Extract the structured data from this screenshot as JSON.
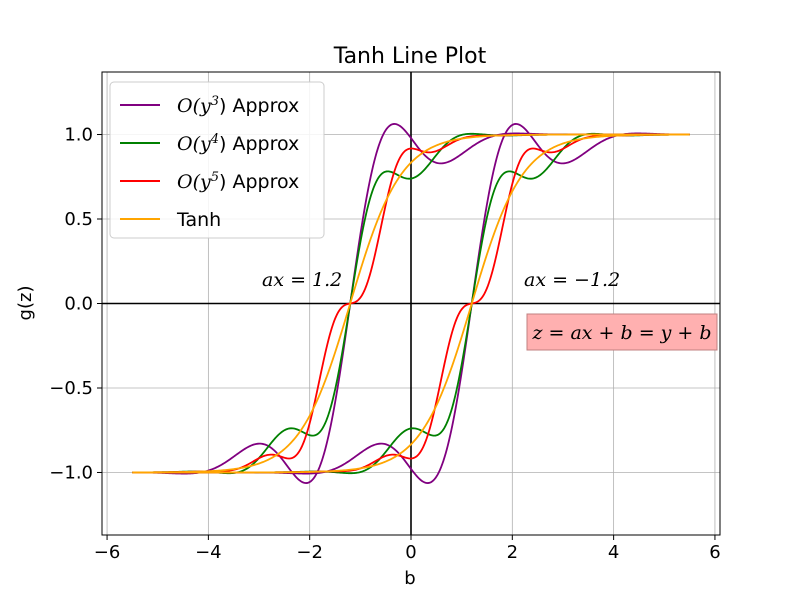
{
  "chart_data": {
    "type": "line",
    "title": "Tanh Line Plot",
    "xlabel": "b",
    "ylabel": "g(z)",
    "xlim": [
      -6.1,
      6.1
    ],
    "ylim": [
      -1.37,
      1.37
    ],
    "xticks": [
      -6,
      -4,
      -2,
      0,
      2,
      4,
      6
    ],
    "xtick_labels": [
      "−6",
      "−4",
      "−2",
      "0",
      "2",
      "4",
      "6"
    ],
    "yticks": [
      -1.0,
      -0.5,
      0.0,
      0.5,
      1.0
    ],
    "ytick_labels": [
      "−1.0",
      "−0.5",
      "0.0",
      "0.5",
      "1.0"
    ],
    "grid": true,
    "legend_position": "upper-left",
    "b_range": [
      -5.5,
      5.5
    ],
    "a_values": [
      1.2,
      -1.2
    ],
    "series": [
      {
        "key": "o3",
        "name_prefix": "O(y",
        "name_exp": "3",
        "name_suffix": ") Approx",
        "color": "#800080"
      },
      {
        "key": "o4",
        "name_prefix": "O(y",
        "name_exp": "4",
        "name_suffix": ") Approx",
        "color": "#008000"
      },
      {
        "key": "o5",
        "name_prefix": "O(y",
        "name_exp": "5",
        "name_suffix": ") Approx",
        "color": "#ff0000"
      },
      {
        "key": "tanh",
        "name": "Tanh",
        "color": "#ffa500"
      }
    ],
    "annotations": [
      {
        "text": "ax = 1.2"
      },
      {
        "text": "ax = −1.2"
      },
      {
        "text": "z = ax + b = y + b",
        "boxed": true,
        "box_color": "#ffb0b0"
      }
    ]
  }
}
